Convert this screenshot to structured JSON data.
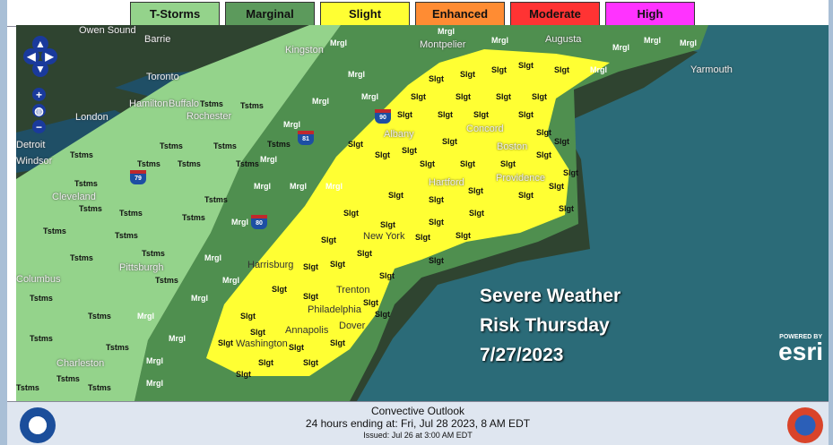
{
  "legend": {
    "items": [
      {
        "label": "T-Storms",
        "color": "#94d38b"
      },
      {
        "label": "Marginal",
        "color": "#5c9a5c"
      },
      {
        "label": "Slight",
        "color": "#ffff33"
      },
      {
        "label": "Enhanced",
        "color": "#ff8c33"
      },
      {
        "label": "Moderate",
        "color": "#ff3333"
      },
      {
        "label": "High",
        "color": "#ff33ff"
      }
    ]
  },
  "map": {
    "risk_labels": {
      "tstms": "Tstms",
      "mrgl": "Mrgl",
      "slgt": "Slgt"
    },
    "cities": [
      "Owen Sound",
      "Barrie",
      "Toronto",
      "Hamilton",
      "London",
      "Buffalo",
      "Rochester",
      "Kingston",
      "Montpelier",
      "Augusta",
      "Yarmouth",
      "Concord",
      "Albany",
      "Boston",
      "Hartford",
      "Providence",
      "New York",
      "Trenton",
      "Philadelphia",
      "Harrisburg",
      "Pittsburgh",
      "Cleveland",
      "Columbus",
      "Dover",
      "Annapolis",
      "Washington",
      "Charleston",
      "Detroit",
      "Windsor"
    ],
    "interstates": [
      "90",
      "81",
      "79",
      "80"
    ],
    "zoom_in": "+",
    "zoom_out": "−"
  },
  "overlay": {
    "line1": "Severe Weather",
    "line2": "Risk Thursday",
    "line3": "7/27/2023"
  },
  "attribution": {
    "powered_by": "POWERED BY",
    "brand": "esri"
  },
  "footer": {
    "title": "Convective Outlook",
    "valid": "24 hours ending at: Fri, Jul 28 2023,   8 AM EDT",
    "issued": "Issued: Jul 26 at 3:00 AM EDT"
  }
}
